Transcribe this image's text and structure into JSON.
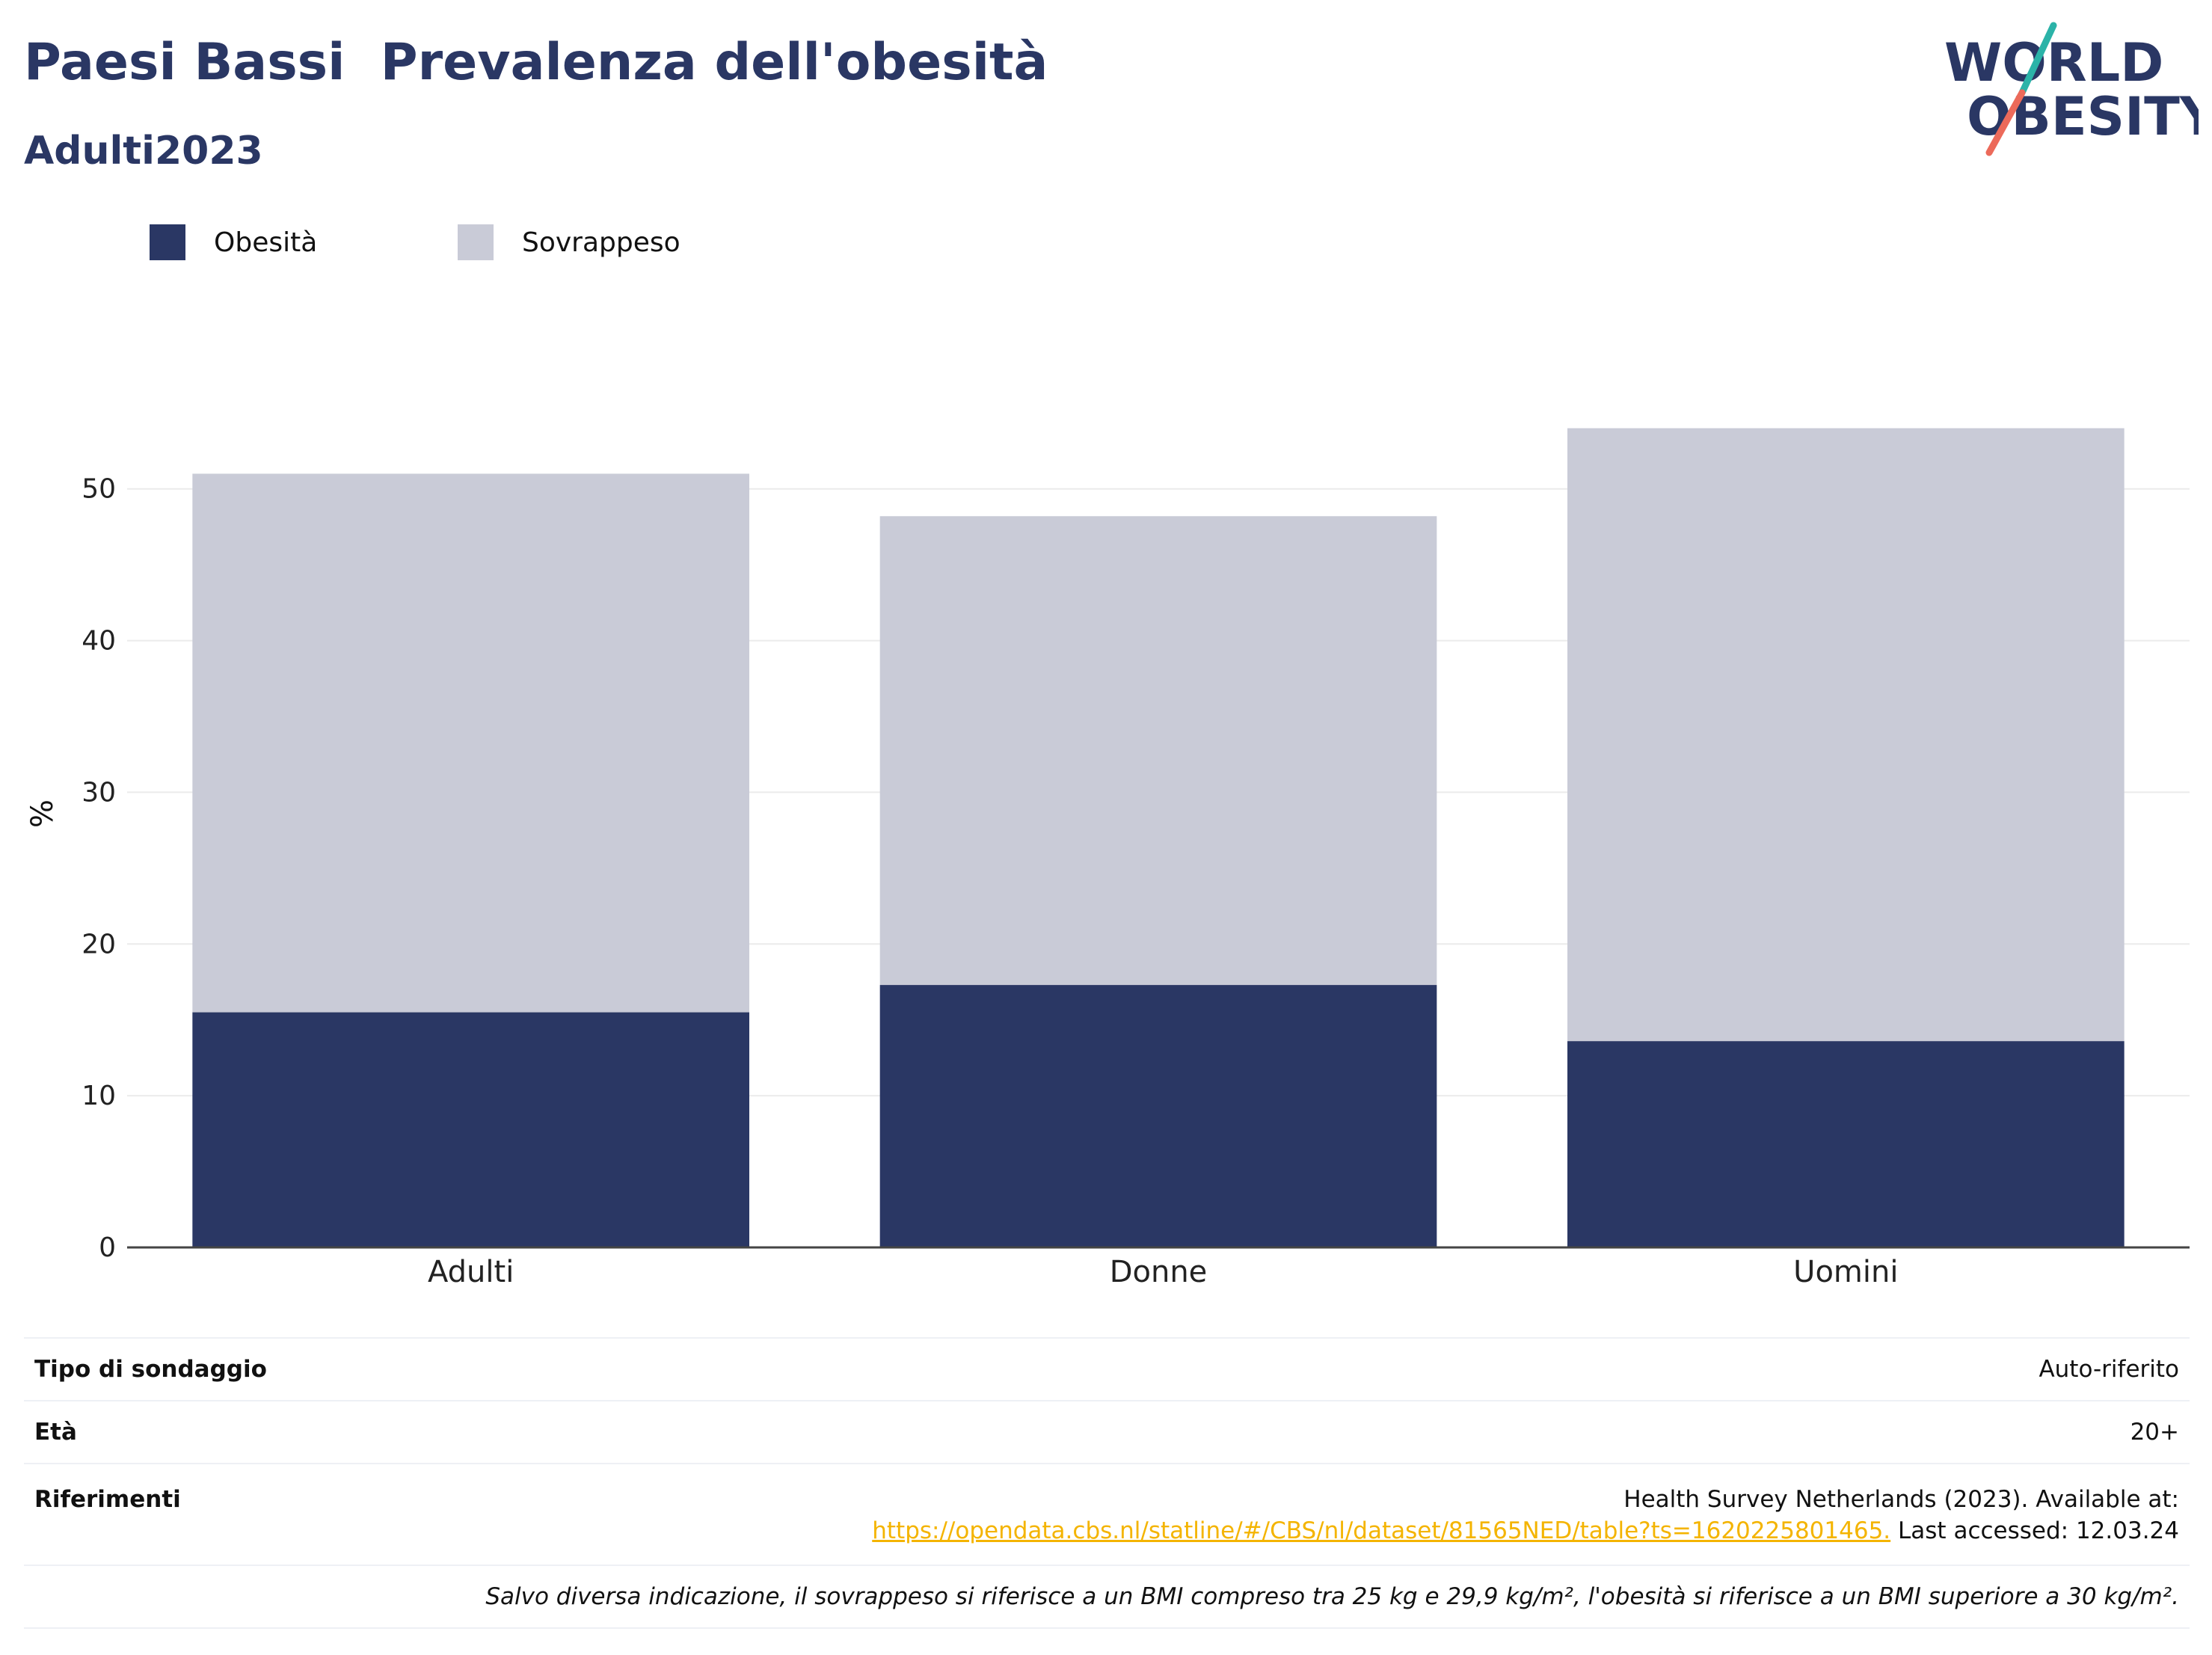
{
  "header": {
    "title": "Paesi Bassi  Prevalenza dell'obesità",
    "subtitle": "Adulti2023"
  },
  "logo": {
    "line1": "WORLD",
    "line2": "OBESITY",
    "colors": {
      "text": "#2a3764",
      "teal": "#2bb3a8",
      "coral": "#ec6a5a"
    }
  },
  "legend": [
    {
      "label": "Obesità",
      "color": "#2a3764"
    },
    {
      "label": "Sovrappeso",
      "color": "#c9cbd7"
    }
  ],
  "chart_data": {
    "type": "bar",
    "stacked": true,
    "categories": [
      "Adulti",
      "Donne",
      "Uomini"
    ],
    "series": [
      {
        "name": "Obesità",
        "values": [
          15.5,
          17.3,
          13.6
        ],
        "color": "#2a3764"
      },
      {
        "name": "Sovrappeso",
        "values": [
          35.5,
          30.9,
          40.4
        ],
        "color": "#c9cbd7"
      }
    ],
    "ylabel": "%",
    "ylim": [
      0,
      56
    ],
    "yticks": [
      0,
      10,
      20,
      30,
      40,
      50
    ],
    "grid": true,
    "legend_position": "top-left"
  },
  "info": {
    "survey_label": "Tipo di sondaggio",
    "survey_value": "Auto-riferito",
    "age_label": "Età",
    "age_value": "20+",
    "ref_label": "Riferimenti",
    "ref_text": "Health Survey Netherlands (2023). Available at:",
    "ref_link": "https://opendata.cbs.nl/statline/#/CBS/nl/dataset/81565NED/table?ts=1620225801465.",
    "ref_accessed": "Last accessed: 12.03.24",
    "note": "Salvo diversa indicazione, il sovrappeso si riferisce a un BMI compreso tra 25 kg e 29,9 kg/m², l'obesità si riferisce a un BMI superiore a 30 kg/m²."
  }
}
